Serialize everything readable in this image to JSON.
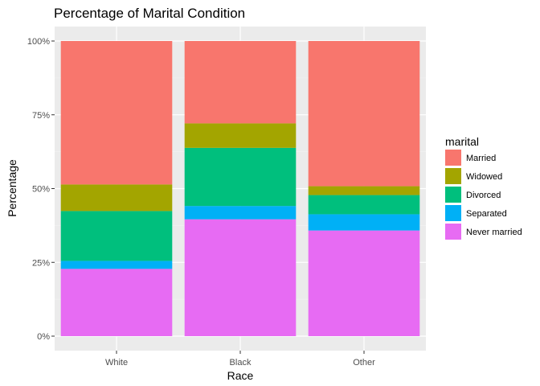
{
  "chart_data": {
    "type": "bar",
    "stacked": true,
    "title": "Percentage of Marital Condition",
    "xlabel": "Race",
    "ylabel": "Percentage",
    "categories": [
      "White",
      "Black",
      "Other"
    ],
    "ylim": [
      0,
      1
    ],
    "yticks": [
      0,
      0.25,
      0.5,
      0.75,
      1.0
    ],
    "ytick_labels": [
      "0%",
      "25%",
      "50%",
      "75%",
      "100%"
    ],
    "grid": true,
    "legend_title": "marital",
    "legend_position": "right",
    "series": [
      {
        "name": "Never married",
        "color": "#E76BF3",
        "values": [
          0.228,
          0.396,
          0.358
        ]
      },
      {
        "name": "Separated",
        "color": "#00B0F6",
        "values": [
          0.027,
          0.045,
          0.055
        ]
      },
      {
        "name": "Divorced",
        "color": "#00BF7D",
        "values": [
          0.169,
          0.197,
          0.065
        ]
      },
      {
        "name": "Widowed",
        "color": "#A3A500",
        "values": [
          0.09,
          0.083,
          0.03
        ]
      },
      {
        "name": "Married",
        "color": "#F8766D",
        "values": [
          0.486,
          0.279,
          0.492
        ]
      }
    ],
    "legend_order": [
      "Married",
      "Widowed",
      "Divorced",
      "Separated",
      "Never married"
    ]
  }
}
